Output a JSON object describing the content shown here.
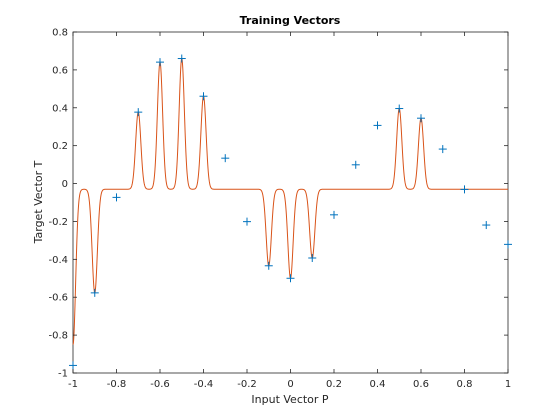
{
  "chart_data": {
    "type": "line",
    "title": "Training Vectors",
    "xlabel": "Input Vector P",
    "ylabel": "Target Vector T",
    "xlim": [
      -1,
      1
    ],
    "ylim": [
      -1,
      0.8
    ],
    "grid": false,
    "legend": "none",
    "x_ticks": [
      -1,
      -0.8,
      -0.6,
      -0.4,
      -0.2,
      0,
      0.2,
      0.4,
      0.6,
      0.8,
      1
    ],
    "x_tick_labels": [
      "-1",
      "-0.8",
      "-0.6",
      "-0.4",
      "-0.2",
      "0",
      "0.2",
      "0.4",
      "0.6",
      "0.8",
      "1"
    ],
    "y_ticks": [
      -1,
      -0.8,
      -0.6,
      -0.4,
      -0.2,
      0,
      0.2,
      0.4,
      0.6,
      0.8
    ],
    "y_tick_labels": [
      "-1",
      "-0.8",
      "-0.6",
      "-0.4",
      "-0.2",
      "0",
      "0.2",
      "0.4",
      "0.6",
      "0.8"
    ],
    "series": [
      {
        "type": "scatter",
        "marker": "+",
        "color": "#0072BD",
        "x": [
          -1,
          -0.9,
          -0.8,
          -0.7,
          -0.6,
          -0.5,
          -0.4,
          -0.3,
          -0.2,
          -0.1,
          0,
          0.1,
          0.2,
          0.3,
          0.4,
          0.5,
          0.6,
          0.7,
          0.8,
          0.9,
          1
        ],
        "y": [
          -0.96,
          -0.577,
          -0.073,
          0.377,
          0.641,
          0.66,
          0.461,
          0.134,
          -0.201,
          -0.434,
          -0.5,
          -0.393,
          -0.165,
          0.099,
          0.307,
          0.396,
          0.345,
          0.182,
          -0.031,
          -0.219,
          -0.321
        ]
      },
      {
        "type": "line",
        "color": "#D95319",
        "baseline": -0.03,
        "peak_width": 0.012,
        "peaks": [
          {
            "x": -1,
            "y": -0.85
          },
          {
            "x": -0.9,
            "y": -0.577
          },
          {
            "x": -0.7,
            "y": 0.377
          },
          {
            "x": -0.6,
            "y": 0.641
          },
          {
            "x": -0.5,
            "y": 0.66
          },
          {
            "x": -0.4,
            "y": 0.461
          },
          {
            "x": -0.1,
            "y": -0.434
          },
          {
            "x": 0,
            "y": -0.5
          },
          {
            "x": 0.1,
            "y": -0.393
          },
          {
            "x": 0.5,
            "y": 0.396
          },
          {
            "x": 0.6,
            "y": 0.345
          }
        ]
      }
    ]
  }
}
